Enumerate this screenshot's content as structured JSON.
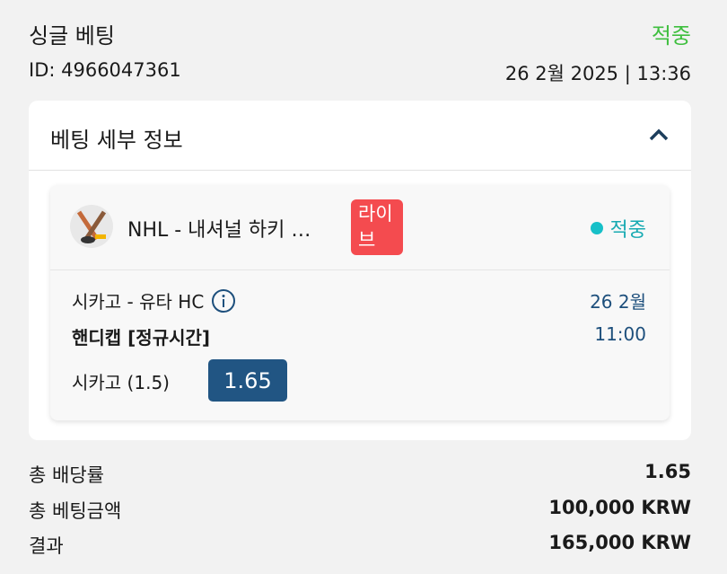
{
  "header": {
    "title": "싱글 베팅",
    "status": "적중",
    "id_label": "ID: 4966047361",
    "datetime": "26 2월 2025 | 13:36"
  },
  "details": {
    "title": "베팅 세부 정보",
    "collapse_icon": "chevron-up-icon",
    "league": "NHL - 내셔널 하키 …",
    "live_badge": "라이브",
    "result": "적중",
    "match": "시카고 - 유타 HC",
    "market": "핸디캡 [정규시간]",
    "date": "26 2월",
    "time": "11:00",
    "selection": "시카고 (1.5)",
    "odds": "1.65"
  },
  "summary": [
    {
      "label": "총 배당률",
      "value": "1.65"
    },
    {
      "label": "총 베팅금액",
      "value": "100,000 KRW"
    },
    {
      "label": "결과",
      "value": "165,000 KRW"
    }
  ],
  "colors": {
    "win": "#3fbf3f",
    "live": "#f44b4f",
    "odds_bg": "#215583",
    "accent": "#1d4f7c",
    "dot": "#17c0c8"
  }
}
